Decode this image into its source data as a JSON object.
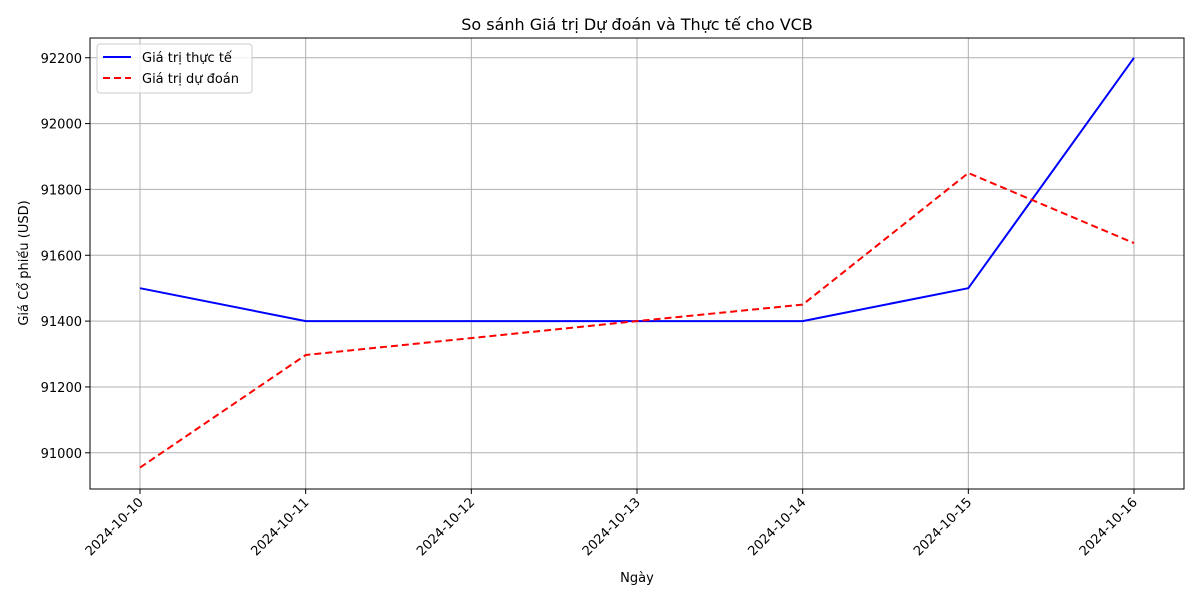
{
  "chart_data": {
    "type": "line",
    "title": "So sánh Giá trị Dự đoán và Thực tế cho VCB",
    "xlabel": "Ngày",
    "ylabel": "Giá Cổ phiếu (USD)",
    "x": [
      "2024-10-10",
      "2024-10-11",
      "2024-10-12",
      "2024-10-13",
      "2024-10-14",
      "2024-10-15",
      "2024-10-16"
    ],
    "x_ticks": [
      "2024-10-10",
      "2024-10-11",
      "2024-10-12",
      "2024-10-13",
      "2024-10-14",
      "2024-10-15",
      "2024-10-16"
    ],
    "y_ticks": [
      91000,
      91200,
      91400,
      91600,
      91800,
      92000,
      92200
    ],
    "ylim": [
      90890,
      92260
    ],
    "grid": true,
    "legend_position": "top-left",
    "series": [
      {
        "name": "Giá trị thực tế",
        "color": "#0000ff",
        "style": "solid",
        "points": [
          {
            "x": "2024-10-10",
            "y": 91500
          },
          {
            "x": "2024-10-11",
            "y": 91400
          },
          {
            "x": "2024-10-13",
            "y": 91400
          },
          {
            "x": "2024-10-14",
            "y": 91400
          },
          {
            "x": "2024-10-15",
            "y": 91500
          },
          {
            "x": "2024-10-16",
            "y": 92200
          }
        ]
      },
      {
        "name": "Giá trị dự đoán",
        "color": "#ff0000",
        "style": "dashed",
        "points": [
          {
            "x": "2024-10-10",
            "y": 90955
          },
          {
            "x": "2024-10-11",
            "y": 91297
          },
          {
            "x": "2024-10-13",
            "y": 91400
          },
          {
            "x": "2024-10-14",
            "y": 91450
          },
          {
            "x": "2024-10-15",
            "y": 91850
          },
          {
            "x": "2024-10-16",
            "y": 91637
          }
        ]
      }
    ]
  }
}
